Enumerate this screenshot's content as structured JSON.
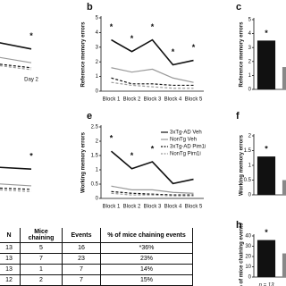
{
  "chart_data": [
    {
      "type": "line",
      "categories": [
        null,
        "Day 2"
      ],
      "ylim": [
        0,
        5
      ],
      "annotations": [
        null,
        "*"
      ],
      "series": [
        {
          "color": "#111111",
          "dash": false,
          "values": [
            2.5,
            1.8
          ]
        },
        {
          "color": "#999999",
          "dash": false,
          "values": [
            1.3,
            0.7
          ]
        },
        {
          "color": "#111111",
          "dash": true,
          "values": [
            0.7,
            0.3
          ]
        },
        {
          "color": "#999999",
          "dash": true,
          "values": [
            0.6,
            0.15
          ]
        }
      ]
    },
    {
      "type": "line",
      "categories": [
        null,
        null
      ],
      "ylim": [
        0,
        2.5
      ],
      "annotations": [
        null,
        "*"
      ],
      "series": [
        {
          "color": "#111111",
          "dash": false,
          "values": [
            1.2,
            1.1
          ]
        },
        {
          "color": "#999999",
          "dash": false,
          "values": [
            0.54,
            0.43
          ]
        },
        {
          "color": "#111111",
          "dash": true,
          "values": [
            0.36,
            0.29
          ]
        },
        {
          "color": "#999999",
          "dash": true,
          "values": [
            0.3,
            0.2
          ]
        }
      ]
    },
    {
      "type": "line",
      "panel_label": "b",
      "ylabel": "Reference memory errors",
      "categories": [
        "Block 1",
        "Block 2",
        "Block 3",
        "Block 4",
        "Block 5"
      ],
      "ylim": [
        0,
        5
      ],
      "yticks": [
        0,
        1,
        2,
        3,
        4,
        5
      ],
      "annotations": [
        "*",
        "*",
        "*",
        "*",
        "*"
      ],
      "series": [
        {
          "color": "#111111",
          "dash": false,
          "values": [
            3.5,
            2.7,
            3.5,
            1.8,
            2.1
          ]
        },
        {
          "color": "#999999",
          "dash": false,
          "values": [
            1.6,
            1.3,
            1.5,
            0.9,
            0.6
          ]
        },
        {
          "color": "#111111",
          "dash": true,
          "values": [
            0.9,
            0.5,
            0.5,
            0.4,
            0.4
          ]
        },
        {
          "color": "#999999",
          "dash": true,
          "values": [
            0.6,
            0.4,
            0.3,
            0.2,
            0.2
          ]
        }
      ]
    },
    {
      "type": "line",
      "panel_label": "e",
      "ylabel": "Working memory errors",
      "categories": [
        "Block 1",
        "Block 2",
        "Block 3",
        "Block 4",
        "Block 5"
      ],
      "ylim": [
        0,
        2.5
      ],
      "yticks": [
        0,
        0.5,
        1,
        1.5,
        2,
        2.5
      ],
      "annotations": [
        "*",
        "*",
        "*",
        null,
        null
      ],
      "series": [
        {
          "name": "3xTg-AD Veh",
          "color": "#111111",
          "dash": false,
          "values": [
            1.65,
            1.04,
            1.28,
            0.52,
            0.67
          ]
        },
        {
          "name": "NonTg Veh",
          "color": "#999999",
          "dash": false,
          "values": [
            0.43,
            0.3,
            0.3,
            0.21,
            0.18
          ]
        },
        {
          "name": "3xTg-AD Pim1i",
          "color": "#111111",
          "dash": true,
          "values": [
            0.24,
            0.18,
            0.15,
            0.12,
            0.12
          ]
        },
        {
          "name": "NonTg Pim1i",
          "color": "#999999",
          "dash": true,
          "values": [
            0.18,
            0.12,
            0.12,
            0.09,
            0.09
          ]
        }
      ]
    },
    {
      "type": "bar",
      "panel_label": "c",
      "ylabel": "Reference memory errors",
      "categories": [
        null,
        null
      ],
      "values": [
        3.5,
        1.6
      ],
      "colors": [
        "#111111",
        "#888888"
      ],
      "ylim": [
        0,
        5
      ],
      "yticks": [
        0,
        1,
        2,
        3,
        4,
        5
      ],
      "annotations": [
        "*",
        null
      ]
    },
    {
      "type": "bar",
      "panel_label": "f",
      "ylabel": "Working memory errors",
      "categories": [
        null,
        null
      ],
      "values": [
        1.3,
        0.5
      ],
      "colors": [
        "#111111",
        "#888888"
      ],
      "ylim": [
        0,
        2
      ],
      "yticks": [
        0,
        0.5,
        1,
        1.5,
        2
      ],
      "annotations": [
        "*",
        null
      ]
    },
    {
      "type": "bar",
      "panel_label": "h",
      "ylabel": "% of mice chaining events",
      "categories": [
        "n = 13",
        null
      ],
      "values": [
        36,
        23
      ],
      "colors": [
        "#111111",
        "#888888"
      ],
      "ylim": [
        0,
        40
      ],
      "yticks": [
        0,
        10,
        20,
        30,
        40
      ],
      "annotations": [
        "*",
        null
      ]
    }
  ],
  "table": {
    "header": [
      "N",
      "Mice chaining",
      "Events",
      "% of mice chaining events"
    ],
    "rows": [
      [
        "13",
        "5",
        "16",
        "*36%"
      ],
      [
        "13",
        "7",
        "23",
        "23%"
      ],
      [
        "13",
        "1",
        "7",
        "14%"
      ],
      [
        "12",
        "2",
        "7",
        "15%"
      ]
    ]
  }
}
